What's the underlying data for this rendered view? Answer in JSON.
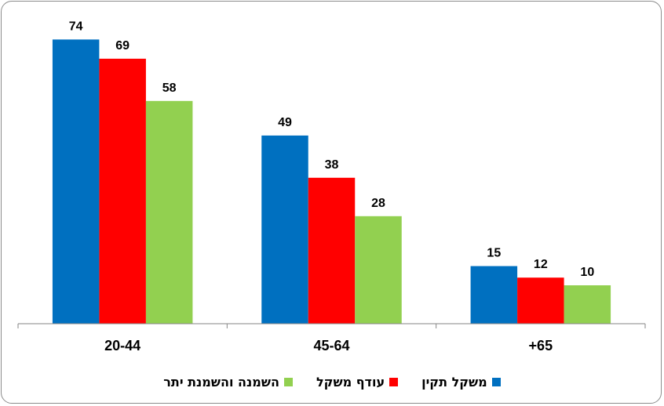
{
  "chart_data": {
    "type": "bar",
    "categories": [
      "20-44",
      "45-64",
      "+65"
    ],
    "series": [
      {
        "name": "משקל תקין",
        "values": [
          74,
          49,
          15
        ],
        "color": "#0070C0"
      },
      {
        "name": "עודף משקל",
        "values": [
          69,
          38,
          12
        ],
        "color": "#FF0000"
      },
      {
        "name": "השמנה והשמנת יתר",
        "values": [
          58,
          28,
          10
        ],
        "color": "#92D050"
      }
    ],
    "ylim": [
      0,
      80
    ],
    "grid": false,
    "legend_position": "bottom",
    "data_labels": true
  }
}
